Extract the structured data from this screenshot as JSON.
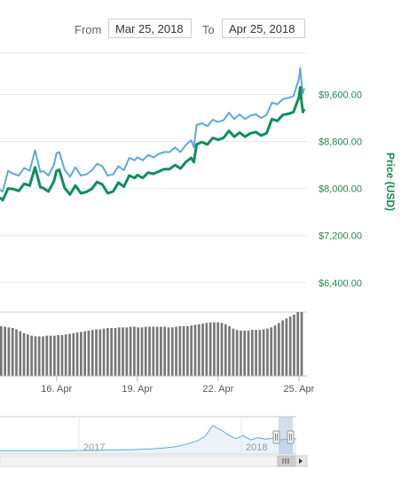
{
  "range_selector": {
    "from_label": "From",
    "from_value": "Mar 25, 2018",
    "to_label": "To",
    "to_value": "Apr 25, 2018"
  },
  "colors": {
    "market_line": "#5aaae0",
    "price_line": "#0e8f5a",
    "volume_bar": "#777777",
    "grid": "#e6e6e6",
    "axis_label": "#1a8a4e",
    "navigator_fill": "#dde9f3",
    "navigator_line": "#5aaae0"
  },
  "chart_data": {
    "type": "line",
    "y_axis": {
      "title": "Price (USD)",
      "ticks": [
        "$6,400.00",
        "$7,200.00",
        "$8,000.00",
        "$8,800.00",
        "$9,600.00"
      ],
      "tick_values": [
        6400,
        7200,
        8000,
        8800,
        9600
      ],
      "range": [
        5900,
        10300
      ],
      "position": "right",
      "grid": true
    },
    "x_axis": {
      "ticks": [
        "16. Apr",
        "19. Apr",
        "22. Apr",
        "25. Apr"
      ],
      "tick_days": [
        16,
        19,
        22,
        25
      ],
      "range_days": [
        13.9,
        25.3
      ]
    },
    "series": [
      {
        "key": "upper",
        "x": [
          13.9,
          14.0,
          14.2,
          14.4,
          14.6,
          14.8,
          15.0,
          15.2,
          15.4,
          15.5,
          15.7,
          15.9,
          16.0,
          16.1,
          16.3,
          16.5,
          16.7,
          16.9,
          17.1,
          17.3,
          17.5,
          17.7,
          17.9,
          18.1,
          18.3,
          18.5,
          18.7,
          18.9,
          19.0,
          19.2,
          19.4,
          19.6,
          19.8,
          20.0,
          20.2,
          20.4,
          20.6,
          20.8,
          21.0,
          21.1,
          21.2,
          21.4,
          21.6,
          21.8,
          22.0,
          22.2,
          22.4,
          22.6,
          22.8,
          23.0,
          23.2,
          23.4,
          23.6,
          23.8,
          24.0,
          24.2,
          24.4,
          24.6,
          24.8,
          25.0,
          25.05,
          25.1,
          25.15,
          25.2
        ],
        "values": [
          7980,
          7950,
          8300,
          8250,
          8220,
          8350,
          8300,
          8650,
          8280,
          8300,
          8220,
          8400,
          8600,
          8620,
          8320,
          8200,
          8360,
          8220,
          8240,
          8300,
          8420,
          8380,
          8220,
          8240,
          8380,
          8310,
          8520,
          8480,
          8530,
          8480,
          8570,
          8530,
          8590,
          8620,
          8620,
          8700,
          8620,
          8740,
          8820,
          8700,
          9080,
          9110,
          9060,
          9170,
          9130,
          9160,
          9290,
          9180,
          9260,
          9180,
          9240,
          9260,
          9200,
          9250,
          9460,
          9430,
          9520,
          9540,
          9570,
          9860,
          10050,
          9800,
          9620,
          9700
        ]
      },
      {
        "key": "lower",
        "x": [
          13.9,
          14.0,
          14.2,
          14.4,
          14.6,
          14.8,
          15.0,
          15.2,
          15.4,
          15.5,
          15.7,
          15.9,
          16.0,
          16.1,
          16.3,
          16.5,
          16.7,
          16.9,
          17.1,
          17.3,
          17.5,
          17.7,
          17.9,
          18.1,
          18.3,
          18.5,
          18.7,
          18.9,
          19.0,
          19.2,
          19.4,
          19.6,
          19.8,
          20.0,
          20.2,
          20.4,
          20.6,
          20.8,
          21.0,
          21.1,
          21.2,
          21.4,
          21.6,
          21.8,
          22.0,
          22.2,
          22.4,
          22.6,
          22.8,
          23.0,
          23.2,
          23.4,
          23.6,
          23.8,
          24.0,
          24.2,
          24.4,
          24.6,
          24.8,
          25.0,
          25.05,
          25.1,
          25.15,
          25.2
        ],
        "values": [
          7850,
          7800,
          8000,
          7990,
          7960,
          8080,
          8050,
          8360,
          8020,
          8010,
          7950,
          8120,
          8300,
          8320,
          8010,
          7900,
          8050,
          7920,
          7940,
          7990,
          8110,
          8070,
          7920,
          7950,
          8100,
          8030,
          8220,
          8180,
          8230,
          8180,
          8270,
          8250,
          8290,
          8330,
          8330,
          8400,
          8340,
          8450,
          8520,
          8450,
          8750,
          8790,
          8750,
          8860,
          8830,
          8860,
          8980,
          8880,
          8950,
          8880,
          8940,
          8960,
          8900,
          8940,
          9180,
          9150,
          9250,
          9270,
          9300,
          9550,
          9720,
          9480,
          9300,
          9350
        ]
      }
    ],
    "volume": {
      "x_start": 13.9,
      "x_end": 25.2,
      "levels": [
        0.78,
        0.77,
        0.76,
        0.75,
        0.73,
        0.7,
        0.67,
        0.65,
        0.63,
        0.62,
        0.62,
        0.62,
        0.63,
        0.63,
        0.63,
        0.64,
        0.64,
        0.65,
        0.66,
        0.67,
        0.68,
        0.69,
        0.7,
        0.71,
        0.72,
        0.73,
        0.73,
        0.74,
        0.75,
        0.75,
        0.75,
        0.76,
        0.76,
        0.76,
        0.77,
        0.77,
        0.76,
        0.76,
        0.77,
        0.77,
        0.77,
        0.77,
        0.77,
        0.77,
        0.76,
        0.76,
        0.77,
        0.78,
        0.78,
        0.78,
        0.79,
        0.8,
        0.81,
        0.82,
        0.83,
        0.84,
        0.84,
        0.84,
        0.83,
        0.81,
        0.78,
        0.74,
        0.72,
        0.71,
        0.71,
        0.71,
        0.72,
        0.72,
        0.72,
        0.73,
        0.74,
        0.76,
        0.79,
        0.83,
        0.87,
        0.9,
        0.93,
        0.96,
        1.0,
        1.0
      ]
    },
    "navigator": {
      "labels": [
        "2017",
        "2018"
      ],
      "series_levels": [
        0.02,
        0.02,
        0.02,
        0.02,
        0.02,
        0.02,
        0.02,
        0.02,
        0.02,
        0.02,
        0.03,
        0.03,
        0.03,
        0.03,
        0.04,
        0.04,
        0.05,
        0.05,
        0.06,
        0.07,
        0.08,
        0.1,
        0.12,
        0.15,
        0.2,
        0.27,
        0.35,
        0.5,
        0.85,
        0.72,
        0.55,
        0.42,
        0.52,
        0.38,
        0.45,
        0.4,
        0.44,
        0.38,
        0.4,
        0.42
      ]
    }
  }
}
